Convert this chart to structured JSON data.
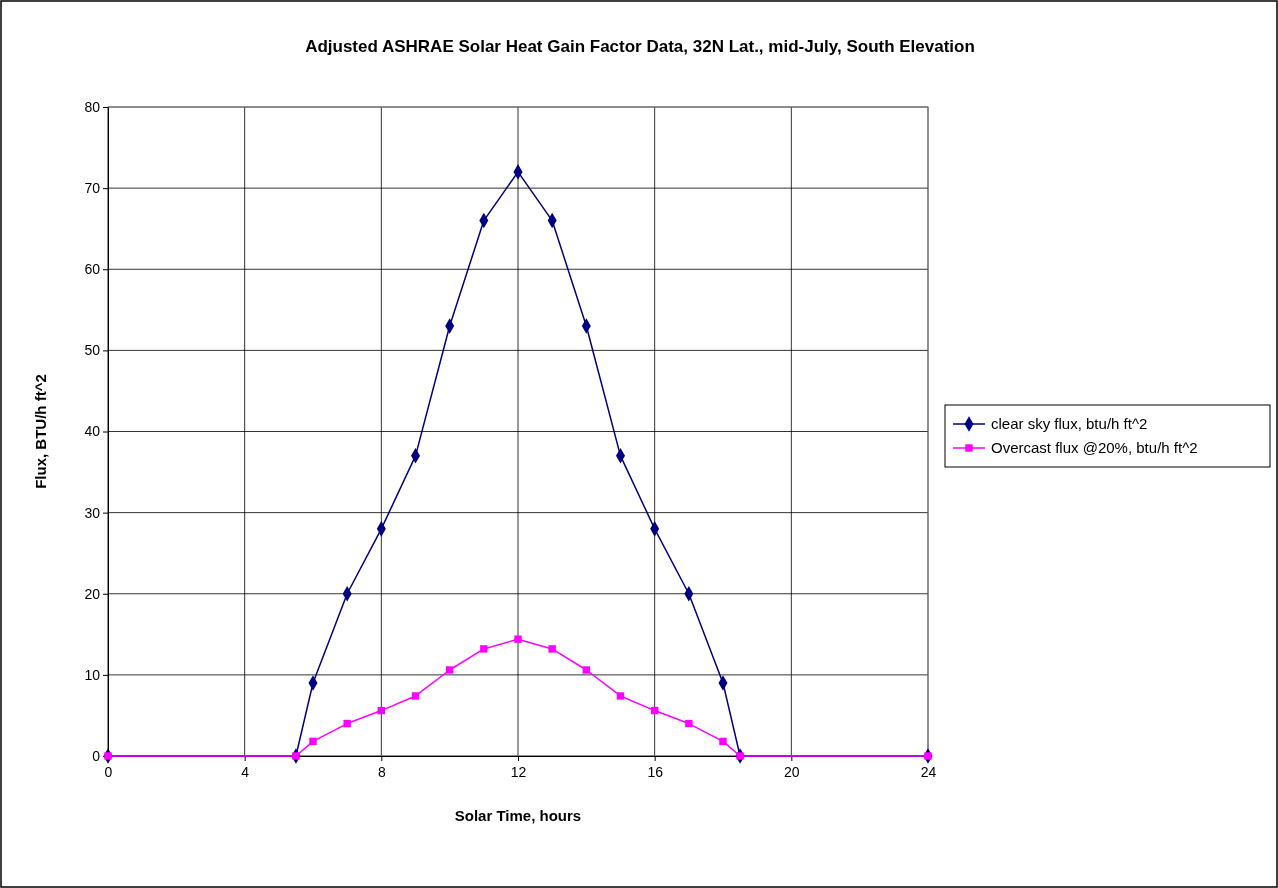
{
  "chart_data": {
    "type": "line",
    "title": "Adjusted ASHRAE Solar Heat Gain Factor Data, 32N Lat., mid-July, South Elevation",
    "xlabel": "Solar Time, hours",
    "ylabel": "Flux, BTU/h ft^2",
    "x": [
      0,
      5.5,
      6,
      7,
      8,
      9,
      10,
      11,
      12,
      13,
      14,
      15,
      16,
      17,
      18,
      18.5,
      24
    ],
    "series": [
      {
        "name": "clear sky flux, btu/h ft^2",
        "color": "#000080",
        "marker": "diamond",
        "values": [
          0,
          0,
          9,
          20,
          28,
          37,
          53,
          66,
          72,
          66,
          53,
          37,
          28,
          20,
          9,
          0,
          0
        ]
      },
      {
        "name": "Overcast flux @20%, btu/h ft^2",
        "color": "#ff00ff",
        "marker": "square",
        "values": [
          0,
          0,
          1.8,
          4,
          5.6,
          7.4,
          10.6,
          13.2,
          14.4,
          13.2,
          10.6,
          7.4,
          5.6,
          4,
          1.8,
          0,
          0
        ]
      }
    ],
    "xlim": [
      0,
      24
    ],
    "xticks": [
      0,
      4,
      8,
      12,
      16,
      20,
      24
    ],
    "ylim": [
      0,
      80
    ],
    "yticks": [
      0,
      10,
      20,
      30,
      40,
      50,
      60,
      70,
      80
    ],
    "grid": true,
    "legend": "right",
    "line_style": "solid"
  }
}
